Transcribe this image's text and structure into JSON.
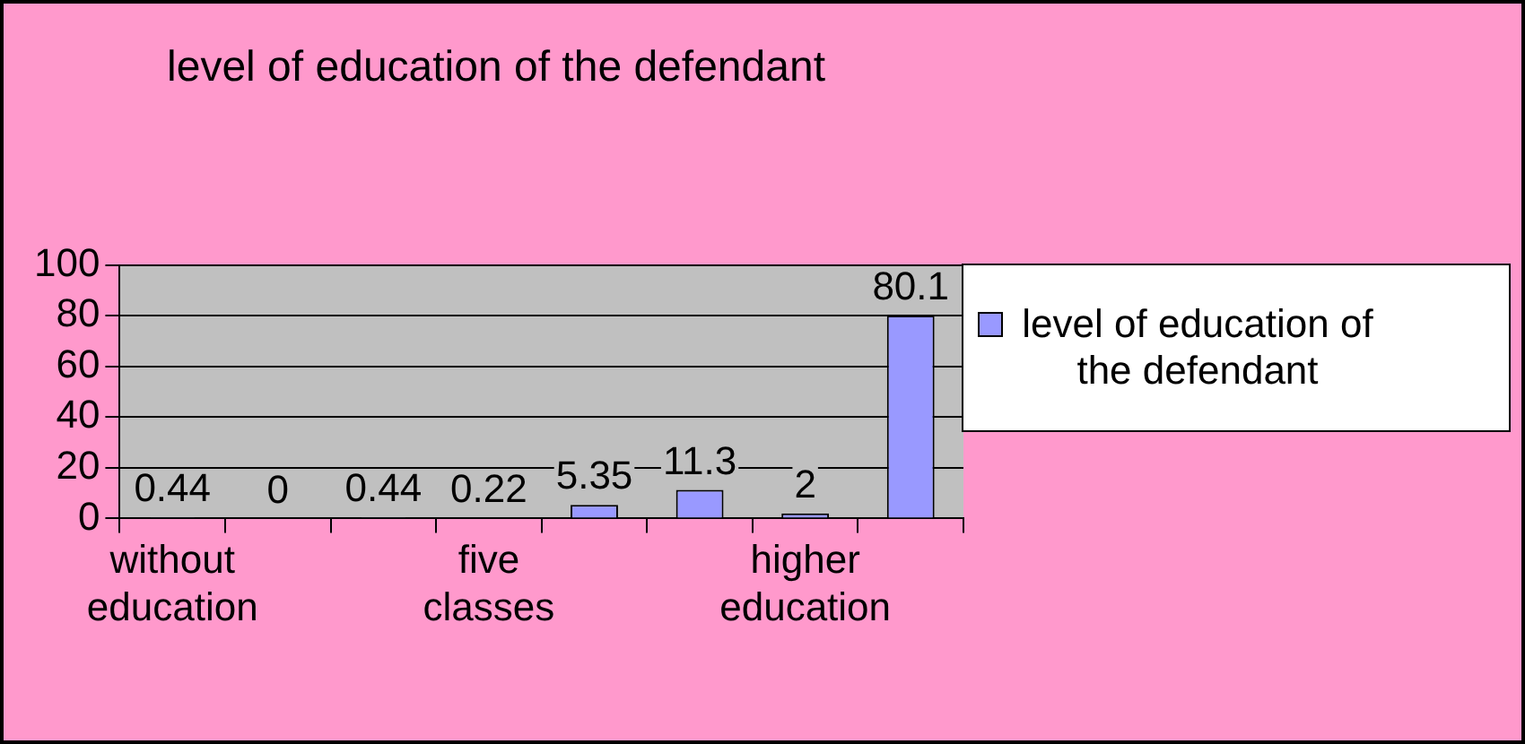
{
  "chart_data": {
    "type": "bar",
    "title": "level of education of the defendant",
    "categories": [
      "without education",
      null,
      null,
      "five classes",
      null,
      null,
      "higher education",
      null
    ],
    "series": [
      {
        "name": "level of education of the defendant",
        "color": "#9999ff",
        "values": [
          0.44,
          0,
          0.44,
          0.22,
          5.35,
          11.3,
          2,
          80.1
        ]
      }
    ],
    "ylim": [
      0,
      100
    ],
    "yticks": [
      0,
      20,
      40,
      60,
      80,
      100
    ],
    "grid": "y",
    "legend": "right",
    "data_labels": true
  }
}
